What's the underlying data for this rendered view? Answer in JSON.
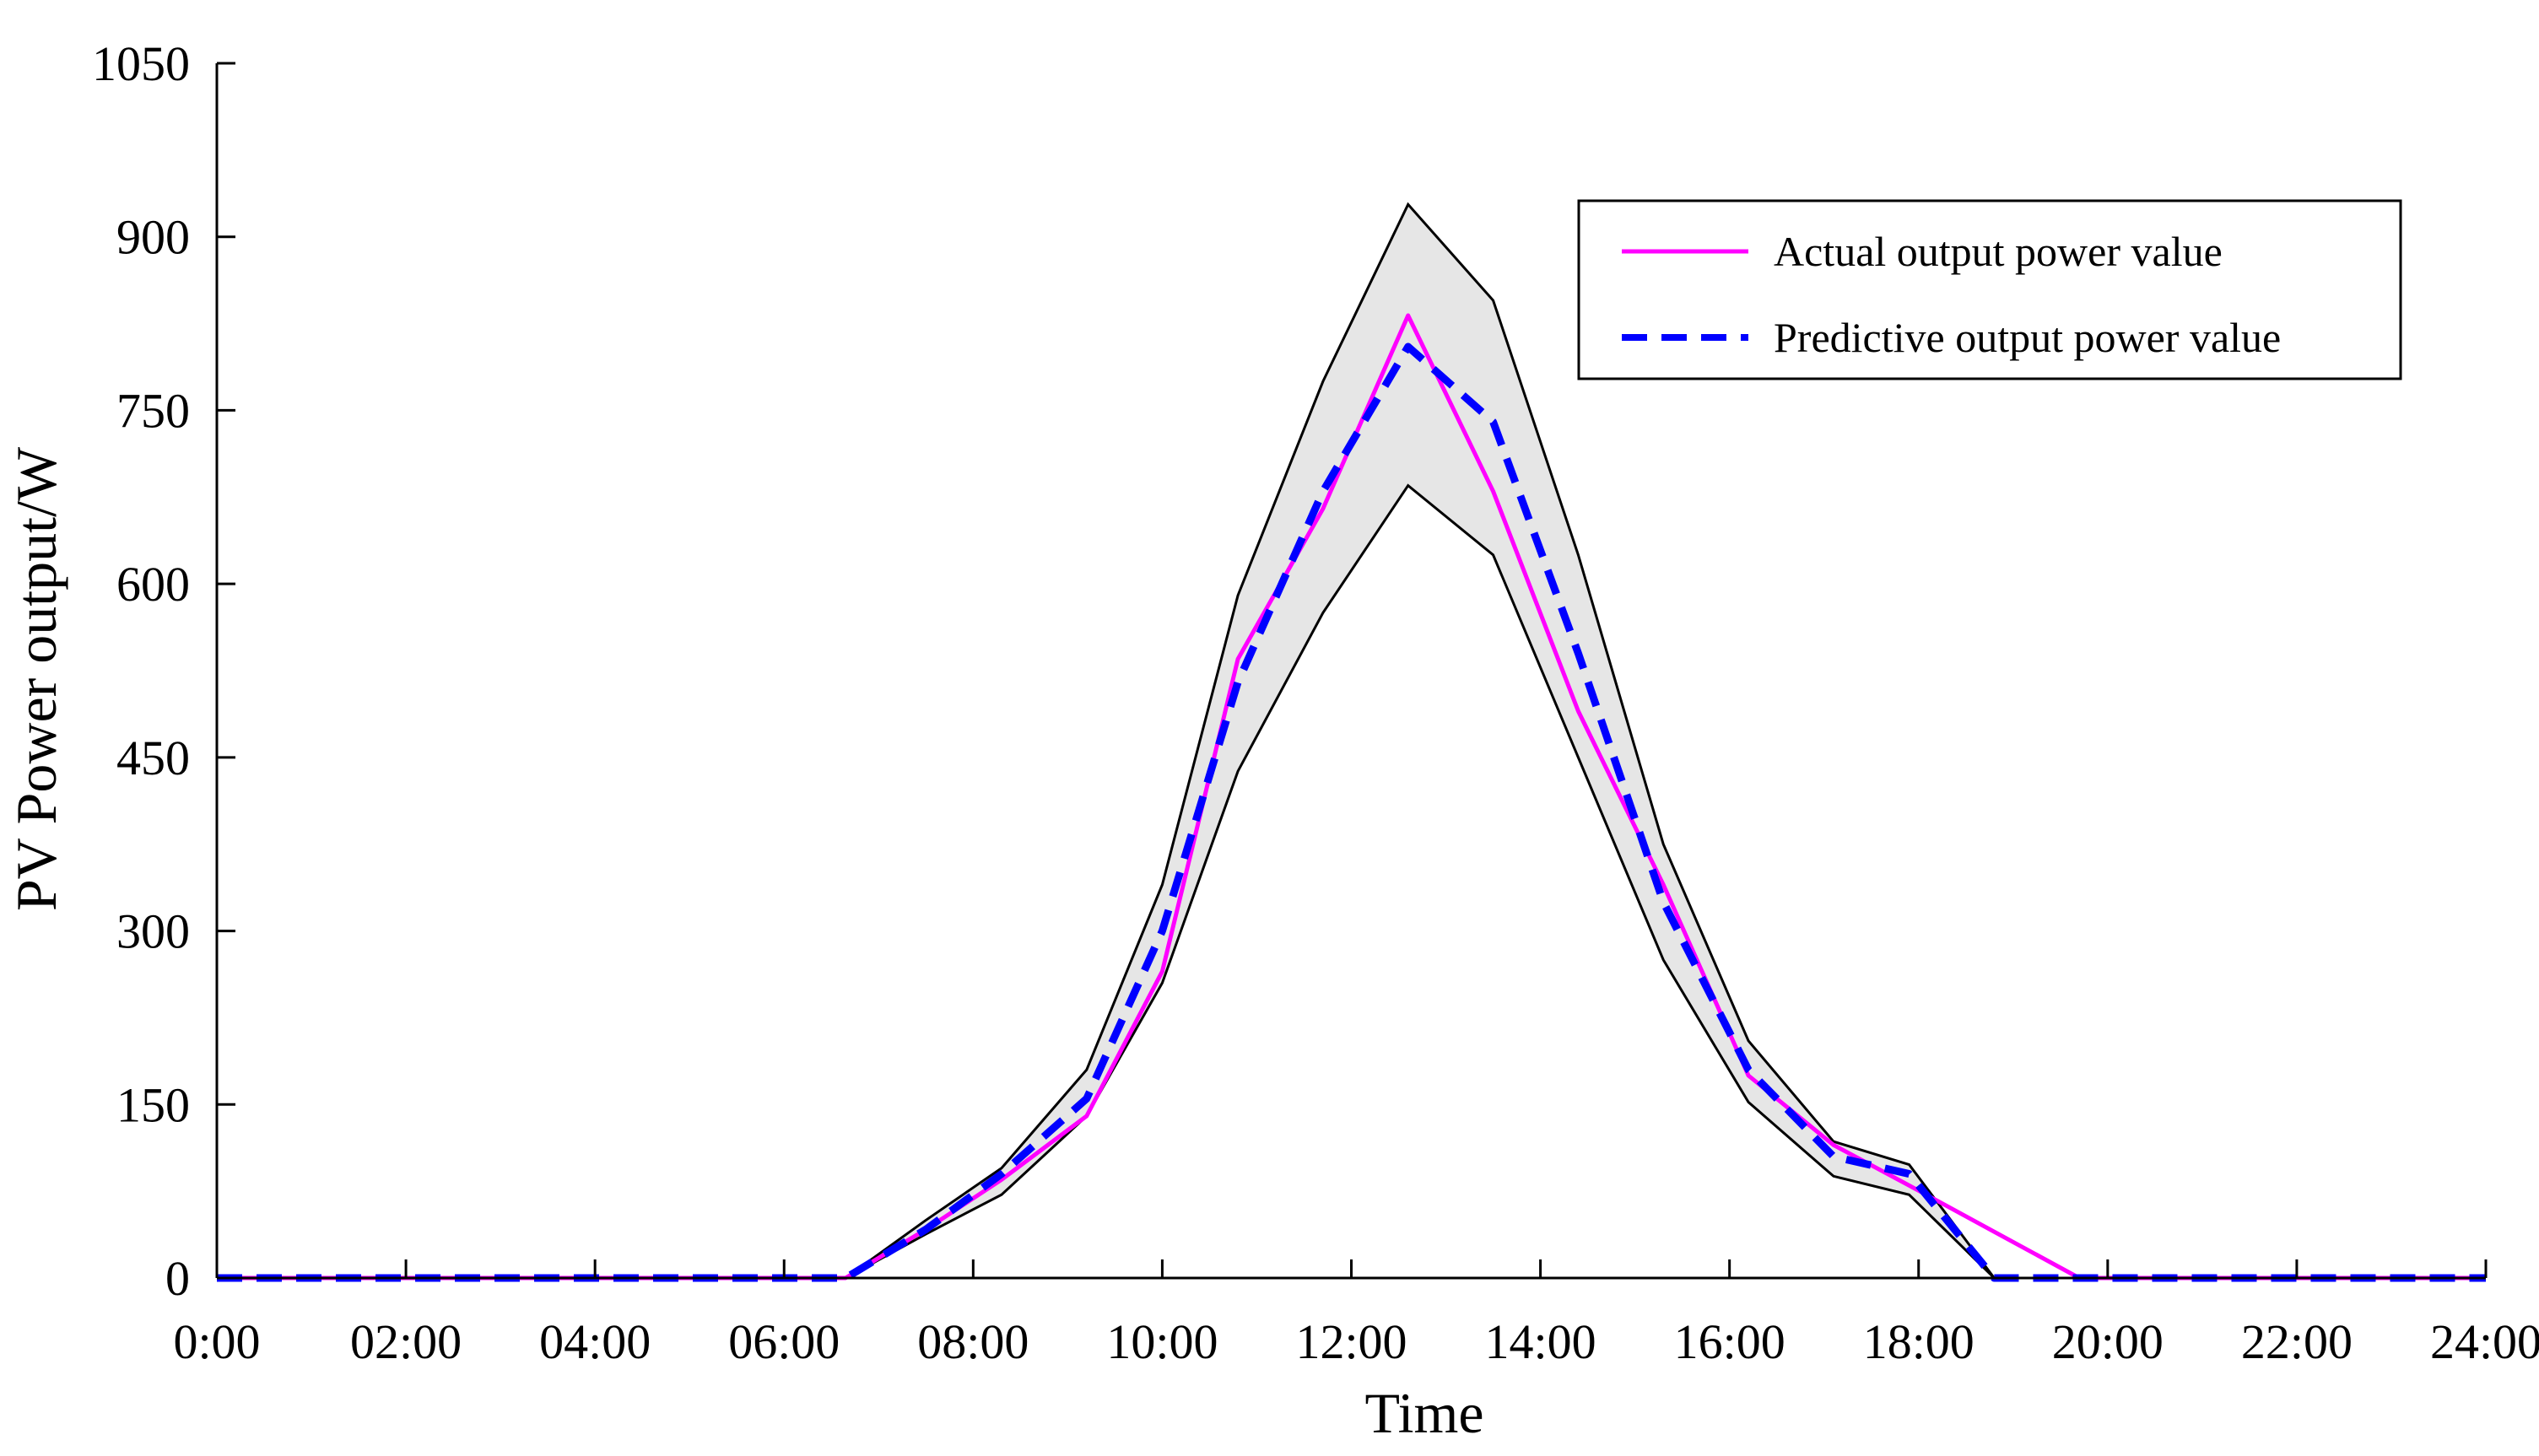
{
  "chart_data": {
    "type": "line",
    "title": "",
    "xlabel": "Time",
    "ylabel": "PV Power output/W",
    "xlim": [
      0,
      24
    ],
    "ylim": [
      0,
      1050
    ],
    "grid": false,
    "legend_position": "top-right",
    "xticks": [
      {
        "value": 0,
        "label": "0:00"
      },
      {
        "value": 2,
        "label": "02:00"
      },
      {
        "value": 4,
        "label": "04:00"
      },
      {
        "value": 6,
        "label": "06:00"
      },
      {
        "value": 8,
        "label": "08:00"
      },
      {
        "value": 10,
        "label": "10:00"
      },
      {
        "value": 12,
        "label": "12:00"
      },
      {
        "value": 14,
        "label": "14:00"
      },
      {
        "value": 16,
        "label": "16:00"
      },
      {
        "value": 18,
        "label": "18:00"
      },
      {
        "value": 20,
        "label": "20:00"
      },
      {
        "value": 22,
        "label": "22:00"
      },
      {
        "value": 24,
        "label": "24:00"
      }
    ],
    "yticks": [
      0,
      150,
      300,
      450,
      600,
      750,
      900,
      1050
    ],
    "band": {
      "name": "Prediction interval",
      "color": "#e6e6e6",
      "edge_color": "#000000",
      "x": [
        0,
        6.65,
        7.5,
        8.3,
        9.2,
        10,
        10.8,
        11.7,
        12.6,
        13.5,
        14.4,
        15.3,
        16.2,
        17.1,
        17.9,
        18.8,
        24
      ],
      "upper": [
        0,
        0,
        50,
        95,
        180,
        340,
        590,
        775,
        928,
        845,
        625,
        375,
        205,
        118,
        98,
        0,
        0
      ],
      "lower": [
        0,
        0,
        38,
        72,
        140,
        255,
        438,
        575,
        685,
        625,
        450,
        275,
        152,
        88,
        72,
        0,
        0
      ]
    },
    "series": [
      {
        "name": "Actual output power value",
        "color": "#ff00ff",
        "style": "solid",
        "x": [
          0,
          6.65,
          7.5,
          8.3,
          9.2,
          10,
          10.8,
          11.7,
          12.6,
          13.5,
          14.4,
          15.3,
          16.2,
          17.1,
          17.9,
          18.8,
          19.7,
          24
        ],
        "values": [
          0,
          0,
          42,
          85,
          140,
          265,
          535,
          665,
          832,
          680,
          490,
          340,
          175,
          115,
          80,
          40,
          0,
          0
        ]
      },
      {
        "name": "Predictive output power value",
        "color": "#0000ff",
        "style": "dashed",
        "x": [
          0,
          6.65,
          7.5,
          8.3,
          9.2,
          10,
          10.8,
          11.7,
          12.6,
          13.5,
          14.4,
          15.3,
          16.2,
          17.1,
          17.9,
          18.8,
          24
        ],
        "values": [
          0,
          0,
          42,
          90,
          155,
          300,
          515,
          680,
          805,
          740,
          540,
          325,
          180,
          105,
          90,
          0,
          0
        ]
      }
    ]
  }
}
